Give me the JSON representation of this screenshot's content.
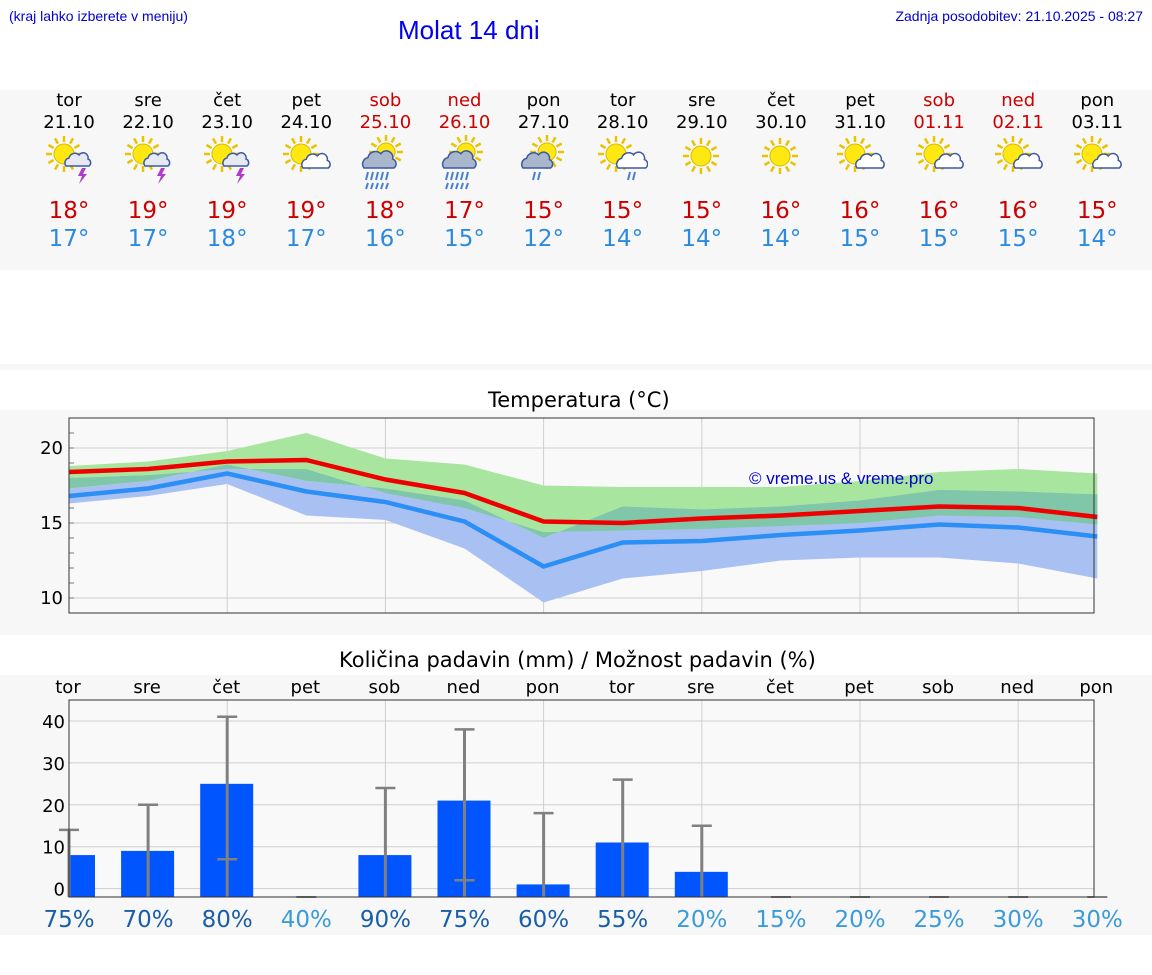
{
  "header": {
    "menu_hint": "(kraj lahko izberete v meniju)",
    "title": "Molat 14 dni",
    "updated": "Zadnja posodobitev: 21.10.2025 - 08:27"
  },
  "days": [
    {
      "name": "tor",
      "date": "21.10",
      "weekend": false,
      "icon": "sun-cloud-thunder-icon",
      "tmax": "18°",
      "tmin": "17°"
    },
    {
      "name": "sre",
      "date": "22.10",
      "weekend": false,
      "icon": "sun-cloud-thunder-icon",
      "tmax": "19°",
      "tmin": "17°"
    },
    {
      "name": "čet",
      "date": "23.10",
      "weekend": false,
      "icon": "sun-cloud-thunder-icon",
      "tmax": "19°",
      "tmin": "18°"
    },
    {
      "name": "pet",
      "date": "24.10",
      "weekend": false,
      "icon": "sun-cloud-icon",
      "tmax": "19°",
      "tmin": "17°"
    },
    {
      "name": "sob",
      "date": "25.10",
      "weekend": true,
      "icon": "sun-heavy-rain-icon",
      "tmax": "18°",
      "tmin": "16°"
    },
    {
      "name": "ned",
      "date": "26.10",
      "weekend": true,
      "icon": "sun-heavy-rain-icon",
      "tmax": "17°",
      "tmin": "15°"
    },
    {
      "name": "pon",
      "date": "27.10",
      "weekend": false,
      "icon": "sun-rain-icon",
      "tmax": "15°",
      "tmin": "12°"
    },
    {
      "name": "tor",
      "date": "28.10",
      "weekend": false,
      "icon": "sun-cloud-rain-icon",
      "tmax": "15°",
      "tmin": "14°"
    },
    {
      "name": "sre",
      "date": "29.10",
      "weekend": false,
      "icon": "sun-icon",
      "tmax": "15°",
      "tmin": "14°"
    },
    {
      "name": "čet",
      "date": "30.10",
      "weekend": false,
      "icon": "sun-icon",
      "tmax": "16°",
      "tmin": "14°"
    },
    {
      "name": "pet",
      "date": "31.10",
      "weekend": false,
      "icon": "sun-cloud-icon",
      "tmax": "16°",
      "tmin": "15°"
    },
    {
      "name": "sob",
      "date": "01.11",
      "weekend": true,
      "icon": "sun-cloud-icon",
      "tmax": "16°",
      "tmin": "15°"
    },
    {
      "name": "ned",
      "date": "02.11",
      "weekend": true,
      "icon": "sun-cloud-icon",
      "tmax": "16°",
      "tmin": "15°"
    },
    {
      "name": "pon",
      "date": "03.11",
      "weekend": false,
      "icon": "sun-cloud-icon",
      "tmax": "15°",
      "tmin": "14°"
    }
  ],
  "colors": {
    "max_line": "#ee0000",
    "min_line": "#2b8ff5",
    "max_band": "#a8e6a0",
    "min_band": "#a9c1f2",
    "overlap_band": "#7fc7a8",
    "bar": "#0055ff",
    "whisker": "#808080",
    "pct_high": "#1a5ea8",
    "pct_low": "#3b9bd8"
  },
  "chart_data": [
    {
      "type": "line",
      "title": "Temperatura (°C)",
      "watermark": "© vreme.us & vreme.pro",
      "ylim": [
        9,
        22
      ],
      "yticks": [
        10,
        15,
        20
      ],
      "x": [
        0,
        1,
        2,
        3,
        4,
        5,
        6,
        7,
        8,
        9,
        10,
        11,
        12,
        13
      ],
      "series": [
        {
          "key": "max",
          "values": [
            18.4,
            18.6,
            19.1,
            19.2,
            17.9,
            17.0,
            15.1,
            15.0,
            15.3,
            15.5,
            15.8,
            16.1,
            16.0,
            15.4
          ]
        },
        {
          "key": "min",
          "values": [
            16.8,
            17.3,
            18.3,
            17.1,
            16.4,
            15.1,
            12.1,
            13.7,
            13.8,
            14.2,
            14.5,
            14.9,
            14.7,
            14.1
          ]
        }
      ],
      "bands": [
        {
          "key": "max_range",
          "low": [
            18.0,
            18.2,
            18.6,
            18.6,
            17.0,
            16.0,
            14.4,
            14.5,
            14.6,
            14.8,
            15.0,
            15.5,
            15.4,
            14.9
          ],
          "high": [
            18.8,
            19.1,
            19.8,
            21.0,
            19.3,
            18.9,
            17.5,
            17.4,
            17.4,
            17.4,
            17.8,
            18.4,
            18.6,
            18.3
          ]
        },
        {
          "key": "min_range",
          "low": [
            16.3,
            16.8,
            17.6,
            15.5,
            15.2,
            13.3,
            9.7,
            11.3,
            11.8,
            12.5,
            12.7,
            12.7,
            12.3,
            11.3
          ],
          "high": [
            17.3,
            17.8,
            18.9,
            17.8,
            17.3,
            16.5,
            14.0,
            16.1,
            15.9,
            16.1,
            16.5,
            17.2,
            17.1,
            16.9
          ]
        }
      ]
    },
    {
      "type": "bar",
      "title": "Količina padavin (mm) / Možnost padavin (%)",
      "categories": [
        "tor",
        "sre",
        "čet",
        "pet",
        "sob",
        "ned",
        "pon",
        "tor",
        "sre",
        "čet",
        "pet",
        "sob",
        "ned",
        "pon"
      ],
      "ylim": [
        -2,
        45
      ],
      "yticks": [
        0,
        10,
        20,
        30,
        40
      ],
      "values": [
        8,
        9,
        25,
        0,
        8,
        21,
        1,
        11,
        4,
        0,
        0,
        0,
        0,
        0
      ],
      "range_low": [
        0,
        0,
        7,
        0,
        0,
        2,
        0,
        0,
        0,
        0,
        0,
        0,
        0,
        0
      ],
      "range_high": [
        14,
        20,
        41,
        0,
        24,
        38,
        18,
        26,
        15,
        0,
        0,
        0,
        0,
        0
      ],
      "probability": [
        "75%",
        "70%",
        "80%",
        "40%",
        "90%",
        "75%",
        "60%",
        "55%",
        "20%",
        "15%",
        "20%",
        "25%",
        "30%",
        "30%"
      ]
    }
  ]
}
